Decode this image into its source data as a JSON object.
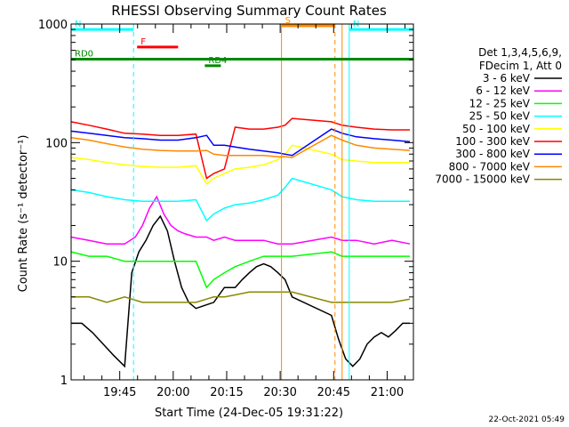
{
  "chart_data": {
    "type": "line",
    "title": "RHESSI Observing Summary Count Rates",
    "xlabel": "Start Time (24-Dec-05 19:31:22)",
    "ylabel": "Count Rate (s⁻¹ detector⁻¹)",
    "xlim_minutes": [
      0,
      96
    ],
    "ylim": [
      1,
      1000
    ],
    "yscale": "log",
    "x_ticks": [
      "19:45",
      "20:00",
      "20:15",
      "20:30",
      "20:45",
      "21:00"
    ],
    "y_ticks": [
      "1",
      "10",
      "100",
      "1000"
    ],
    "legend_header": [
      "Det 1,3,4,5,6,9,",
      "FDecim 1, Att 0"
    ],
    "legend_position": "right",
    "series": [
      {
        "name": "3 - 6 keV",
        "color": "#000000",
        "x": [
          0,
          3,
          6,
          9,
          12,
          15,
          17,
          19,
          21,
          23,
          25,
          27,
          29,
          31,
          33,
          35,
          37,
          40,
          43,
          46,
          48,
          50,
          52,
          54,
          56,
          58,
          60,
          62,
          73,
          75,
          77,
          79,
          81,
          83,
          85,
          87,
          89,
          91,
          93,
          95
        ],
        "y": [
          3,
          3,
          2.5,
          2,
          1.6,
          1.3,
          8,
          12,
          15,
          20,
          24,
          18,
          10,
          6,
          4.5,
          4,
          4.2,
          4.5,
          6,
          6,
          7,
          8,
          9,
          9.5,
          9,
          8,
          7,
          5,
          3.5,
          2.2,
          1.5,
          1.3,
          1.5,
          2,
          2.3,
          2.5,
          2.3,
          2.6,
          3,
          3
        ]
      },
      {
        "name": "6 - 12 keV",
        "color": "#ff00ff",
        "x": [
          0,
          5,
          10,
          15,
          18,
          20,
          22,
          24,
          26,
          28,
          30,
          32,
          35,
          38,
          40,
          43,
          46,
          50,
          54,
          58,
          62,
          73,
          76,
          80,
          85,
          90,
          95
        ],
        "y": [
          16,
          15,
          14,
          14,
          16,
          20,
          28,
          35,
          25,
          20,
          18,
          17,
          16,
          16,
          15,
          16,
          15,
          15,
          15,
          14,
          14,
          16,
          15,
          15,
          14,
          15,
          14
        ]
      },
      {
        "name": "12 - 25 keV",
        "color": "#00ff00",
        "x": [
          0,
          5,
          10,
          15,
          20,
          25,
          30,
          35,
          38,
          40,
          43,
          46,
          50,
          54,
          58,
          62,
          73,
          76,
          80,
          85,
          90,
          95
        ],
        "y": [
          12,
          11,
          11,
          10,
          10,
          10,
          10,
          10,
          6,
          7,
          8,
          9,
          10,
          11,
          11,
          11,
          12,
          11,
          11,
          11,
          11,
          11
        ]
      },
      {
        "name": "25 - 50 keV",
        "color": "#00ffff",
        "x": [
          0,
          5,
          10,
          15,
          20,
          25,
          30,
          35,
          38,
          40,
          43,
          46,
          50,
          54,
          58,
          60,
          62,
          73,
          76,
          80,
          85,
          90,
          95
        ],
        "y": [
          40,
          38,
          35,
          33,
          32,
          32,
          32,
          33,
          22,
          25,
          28,
          30,
          31,
          33,
          36,
          42,
          50,
          40,
          35,
          33,
          32,
          32,
          32
        ]
      },
      {
        "name": "50 - 100 keV",
        "color": "#ffff00",
        "x": [
          0,
          5,
          10,
          15,
          20,
          25,
          30,
          35,
          38,
          40,
          43,
          46,
          50,
          54,
          58,
          60,
          62,
          73,
          76,
          80,
          85,
          90,
          95
        ],
        "y": [
          75,
          72,
          68,
          65,
          63,
          62,
          62,
          64,
          45,
          50,
          55,
          60,
          62,
          65,
          72,
          80,
          95,
          80,
          72,
          70,
          68,
          68,
          68
        ]
      },
      {
        "name": "100 - 300 keV",
        "color": "#ff0000",
        "x": [
          0,
          5,
          10,
          15,
          20,
          25,
          30,
          35,
          38,
          40,
          43,
          46,
          50,
          54,
          58,
          60,
          62,
          73,
          76,
          80,
          85,
          90,
          95
        ],
        "y": [
          150,
          140,
          130,
          120,
          118,
          115,
          115,
          118,
          50,
          55,
          60,
          135,
          130,
          130,
          135,
          140,
          160,
          150,
          140,
          135,
          130,
          128,
          128
        ]
      },
      {
        "name": "300 - 800 keV",
        "color": "#0000ff",
        "x": [
          0,
          5,
          10,
          15,
          20,
          25,
          30,
          35,
          38,
          40,
          43,
          46,
          50,
          54,
          58,
          60,
          62,
          73,
          76,
          80,
          85,
          90,
          95
        ],
        "y": [
          125,
          120,
          115,
          110,
          108,
          105,
          105,
          110,
          115,
          95,
          95,
          92,
          88,
          85,
          82,
          80,
          78,
          130,
          120,
          112,
          108,
          105,
          102
        ]
      },
      {
        "name": "800 - 7000 keV",
        "color": "#ff8800",
        "x": [
          0,
          5,
          10,
          15,
          20,
          25,
          30,
          35,
          38,
          40,
          43,
          46,
          50,
          54,
          58,
          60,
          62,
          73,
          76,
          80,
          85,
          90,
          95
        ],
        "y": [
          110,
          105,
          98,
          92,
          88,
          86,
          85,
          85,
          86,
          80,
          78,
          78,
          78,
          78,
          76,
          76,
          75,
          115,
          105,
          95,
          90,
          88,
          86
        ]
      },
      {
        "name": "7000 - 15000 keV",
        "color": "#888800",
        "x": [
          0,
          5,
          10,
          15,
          20,
          25,
          30,
          35,
          38,
          40,
          43,
          46,
          50,
          54,
          58,
          62,
          73,
          76,
          80,
          85,
          90,
          95
        ],
        "y": [
          5,
          5,
          4.5,
          5,
          4.5,
          4.5,
          4.5,
          4.5,
          4.8,
          5,
          5,
          5.2,
          5.5,
          5.5,
          5.5,
          5.5,
          4.5,
          4.5,
          4.5,
          4.5,
          4.5,
          4.8
        ]
      }
    ],
    "flag_bars": [
      {
        "label": "N",
        "color": "#00ffff",
        "x0": 0,
        "x1": 17.5,
        "y": 900
      },
      {
        "label": "F",
        "color": "#ff0000",
        "x0": 18.5,
        "x1": 30,
        "y": 640
      },
      {
        "label": "RD0",
        "color": "#008800",
        "x0": 0,
        "x1": 96,
        "y": 505
      },
      {
        "label": "RD4",
        "color": "#008800",
        "x0": 37.5,
        "x1": 42,
        "y": 445
      },
      {
        "label": "S",
        "color": "#ff8800",
        "x0": 59,
        "x1": 74,
        "y": 1100
      },
      {
        "label": "N",
        "color": "#00ffff",
        "x0": 78,
        "x1": 96,
        "y": 900
      }
    ],
    "vertical_lines": [
      {
        "x": 0,
        "color": "#00ffff",
        "style": "solid"
      },
      {
        "x": 17.5,
        "color": "#00ffff",
        "style": "dashed"
      },
      {
        "x": 59,
        "color": "#ff8800",
        "style": "solid"
      },
      {
        "x": 74,
        "color": "#ff8800",
        "style": "dashed"
      },
      {
        "x": 76,
        "color": "#ff8800",
        "style": "solid"
      },
      {
        "x": 78,
        "color": "#00ffff",
        "style": "solid"
      },
      {
        "x": 96,
        "color": "#00ffff",
        "style": "dashed"
      }
    ],
    "footer_date": "22-Oct-2021 05:49"
  }
}
